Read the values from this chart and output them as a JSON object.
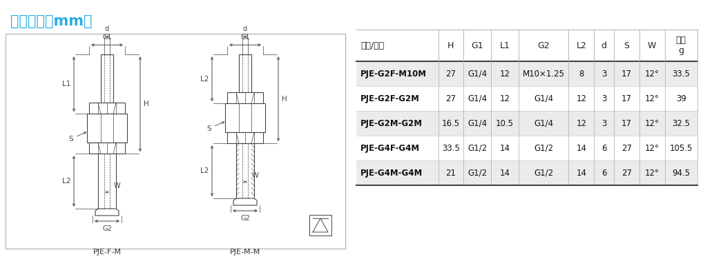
{
  "title": "尺寸规格（mm）",
  "title_color": "#29abe2",
  "title_fontsize": 15,
  "background_color": "#ffffff",
  "top_bar_color": "#29abe2",
  "table_headers": [
    "型号/尺寸",
    "H",
    "G1",
    "L1",
    "G2",
    "L2",
    "d",
    "S",
    "W",
    "单重\ng"
  ],
  "table_col_widths": [
    1.55,
    0.48,
    0.52,
    0.52,
    0.95,
    0.48,
    0.38,
    0.48,
    0.48,
    0.62
  ],
  "table_data": [
    [
      "PJE-G2F-M10M",
      "27",
      "G1/4",
      "12",
      "M10×1.25",
      "8",
      "3",
      "17",
      "12°",
      "33.5"
    ],
    [
      "PJE-G2F-G2M",
      "27",
      "G1/4",
      "12",
      "G1/4",
      "12",
      "3",
      "17",
      "12°",
      "39"
    ],
    [
      "PJE-G2M-G2M",
      "16.5",
      "G1/4",
      "10.5",
      "G1/4",
      "12",
      "3",
      "17",
      "12°",
      "32.5"
    ],
    [
      "PJE-G4F-G4M",
      "33.5",
      "G1/2",
      "14",
      "G1/2",
      "14",
      "6",
      "27",
      "12°",
      "105.5"
    ],
    [
      "PJE-G4M-G4M",
      "21",
      "G1/2",
      "14",
      "G1/2",
      "14",
      "6",
      "27",
      "12°",
      "94.5"
    ]
  ],
  "label_left": "PJE-F-M",
  "label_right": "PJE-M-M",
  "dim_line_color": "#444444",
  "part_color": "#444444",
  "shaded_row_color": "#ebebeb"
}
